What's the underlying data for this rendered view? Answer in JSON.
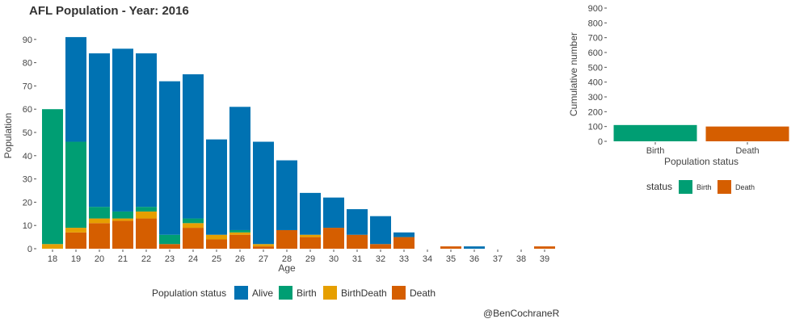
{
  "title": "AFL Population - Year: 2016",
  "credit": "@BenCochraneR",
  "colors": {
    "Alive": "#0072B2",
    "Birth": "#009E73",
    "BirthDeath": "#E69F00",
    "Death": "#D55E00"
  },
  "chart_data": [
    {
      "type": "bar",
      "stacked": true,
      "title": "AFL Population - Year: 2016",
      "xlabel": "Age",
      "ylabel": "Population",
      "ylim": [
        0,
        100
      ],
      "yticks": [
        0,
        10,
        20,
        30,
        40,
        50,
        60,
        70,
        80,
        90
      ],
      "categories": [
        "18",
        "19",
        "20",
        "21",
        "22",
        "23",
        "24",
        "25",
        "26",
        "27",
        "28",
        "29",
        "30",
        "31",
        "32",
        "33",
        "34",
        "35",
        "36",
        "37",
        "38",
        "39"
      ],
      "series": [
        {
          "name": "Death",
          "values": [
            0,
            7,
            11,
            12,
            13,
            2,
            9,
            4,
            6,
            1,
            8,
            5,
            9,
            6,
            2,
            5,
            0,
            1,
            0,
            0,
            0,
            1
          ]
        },
        {
          "name": "BirthDeath",
          "values": [
            2,
            2,
            2,
            1,
            3,
            0,
            2,
            2,
            1,
            1,
            0,
            1,
            0,
            0,
            0,
            0,
            0,
            0,
            0,
            0,
            0,
            0
          ]
        },
        {
          "name": "Birth",
          "values": [
            58,
            37,
            5,
            3,
            2,
            4,
            2,
            0,
            1,
            0,
            0,
            0,
            0,
            0,
            0,
            0,
            0,
            0,
            0,
            0,
            0,
            0
          ]
        },
        {
          "name": "Alive",
          "values": [
            0,
            45,
            66,
            70,
            66,
            66,
            62,
            41,
            53,
            44,
            30,
            18,
            13,
            11,
            12,
            2,
            0,
            0,
            1,
            0,
            0,
            0
          ]
        }
      ],
      "legend": {
        "title": "Population status",
        "entries": [
          "Alive",
          "Birth",
          "BirthDeath",
          "Death"
        ],
        "placement": "bottom"
      }
    },
    {
      "type": "bar",
      "title": "",
      "xlabel": "Population status",
      "ylabel": "Cumulative number",
      "ylim": [
        0,
        900
      ],
      "yticks": [
        0,
        100,
        200,
        300,
        400,
        500,
        600,
        700,
        800,
        900
      ],
      "categories": [
        "Birth",
        "Death"
      ],
      "values": [
        110,
        100
      ],
      "legend": {
        "title": "status",
        "entries": [
          "Birth",
          "Death"
        ],
        "placement": "bottom"
      }
    }
  ]
}
